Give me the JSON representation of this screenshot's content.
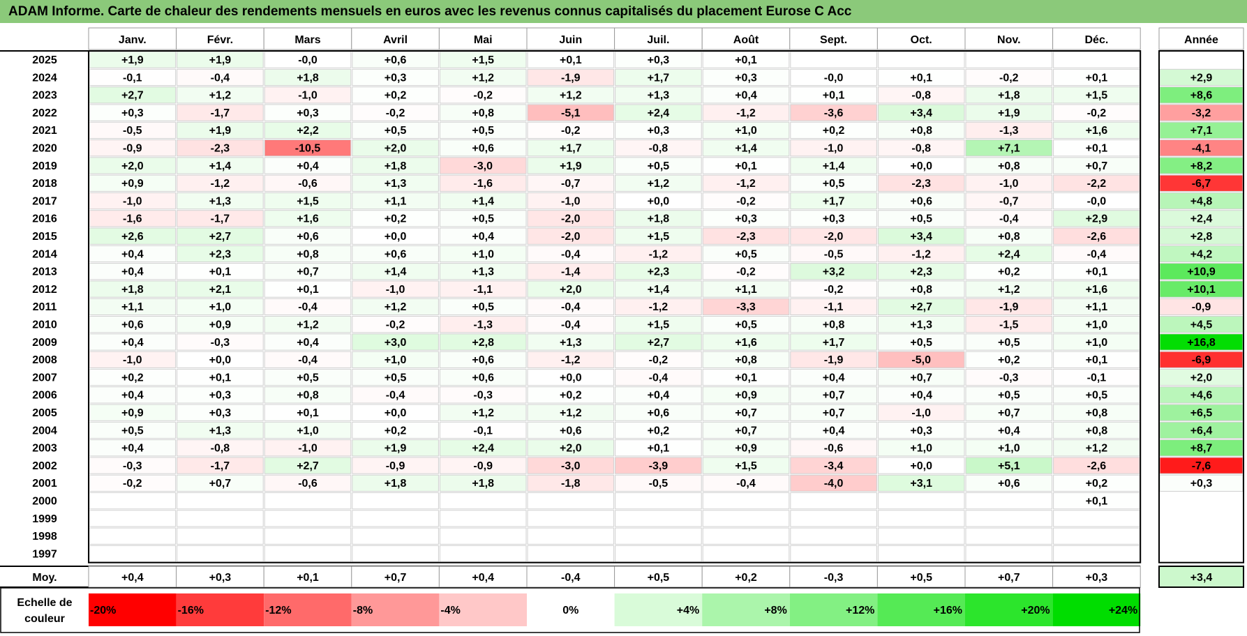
{
  "title": "ADAM Informe. Carte de chaleur des rendements mensuels en euros avec les revenus connus capitalisés du placement Eurose C Acc",
  "chart_data": {
    "type": "heatmap",
    "months": [
      "Janv.",
      "Févr.",
      "Mars",
      "Avril",
      "Mai",
      "Juin",
      "Juil.",
      "Août",
      "Sept.",
      "Oct.",
      "Nov.",
      "Déc."
    ],
    "year_header": "Année",
    "avg_label": "Moy.",
    "rows": [
      {
        "year": "2025",
        "values": [
          "+1,9",
          "+1,9",
          "-0,0",
          "+0,6",
          "+1,5",
          "+0,1",
          "+0,3",
          "+0,1",
          "",
          "",
          "",
          ""
        ],
        "annual": ""
      },
      {
        "year": "2024",
        "values": [
          "-0,1",
          "-0,4",
          "+1,8",
          "+0,3",
          "+1,2",
          "-1,9",
          "+1,7",
          "+0,3",
          "-0,0",
          "+0,1",
          "-0,2",
          "+0,1"
        ],
        "annual": "+2,9"
      },
      {
        "year": "2023",
        "values": [
          "+2,7",
          "+1,2",
          "-1,0",
          "+0,2",
          "-0,2",
          "+1,2",
          "+1,3",
          "+0,4",
          "+0,1",
          "-0,8",
          "+1,8",
          "+1,5"
        ],
        "annual": "+8,6"
      },
      {
        "year": "2022",
        "values": [
          "+0,3",
          "-1,7",
          "+0,3",
          "-0,2",
          "+0,8",
          "-5,1",
          "+2,4",
          "-1,2",
          "-3,6",
          "+3,4",
          "+1,9",
          "-0,2"
        ],
        "annual": "-3,2"
      },
      {
        "year": "2021",
        "values": [
          "-0,5",
          "+1,9",
          "+2,2",
          "+0,5",
          "+0,5",
          "-0,2",
          "+0,3",
          "+1,0",
          "+0,2",
          "+0,8",
          "-1,3",
          "+1,6"
        ],
        "annual": "+7,1"
      },
      {
        "year": "2020",
        "values": [
          "-0,9",
          "-2,3",
          "-10,5",
          "+2,0",
          "+0,6",
          "+1,7",
          "-0,8",
          "+1,4",
          "-1,0",
          "-0,8",
          "+7,1",
          "+0,1"
        ],
        "annual": "-4,1"
      },
      {
        "year": "2019",
        "values": [
          "+2,0",
          "+1,4",
          "+0,4",
          "+1,8",
          "-3,0",
          "+1,9",
          "+0,5",
          "+0,1",
          "+1,4",
          "+0,0",
          "+0,8",
          "+0,7"
        ],
        "annual": "+8,2"
      },
      {
        "year": "2018",
        "values": [
          "+0,9",
          "-1,2",
          "-0,6",
          "+1,3",
          "-1,6",
          "-0,7",
          "+1,2",
          "-1,2",
          "+0,5",
          "-2,3",
          "-1,0",
          "-2,2"
        ],
        "annual": "-6,7"
      },
      {
        "year": "2017",
        "values": [
          "-1,0",
          "+1,3",
          "+1,5",
          "+1,1",
          "+1,4",
          "-1,0",
          "+0,0",
          "-0,2",
          "+1,7",
          "+0,6",
          "-0,7",
          "-0,0"
        ],
        "annual": "+4,8"
      },
      {
        "year": "2016",
        "values": [
          "-1,6",
          "-1,7",
          "+1,6",
          "+0,2",
          "+0,5",
          "-2,0",
          "+1,8",
          "+0,3",
          "+0,3",
          "+0,5",
          "-0,4",
          "+2,9"
        ],
        "annual": "+2,4"
      },
      {
        "year": "2015",
        "values": [
          "+2,6",
          "+2,7",
          "+0,6",
          "+0,0",
          "+0,4",
          "-2,0",
          "+1,5",
          "-2,3",
          "-2,0",
          "+3,4",
          "+0,8",
          "-2,6"
        ],
        "annual": "+2,8"
      },
      {
        "year": "2014",
        "values": [
          "+0,4",
          "+2,3",
          "+0,8",
          "+0,6",
          "+1,0",
          "-0,4",
          "-1,2",
          "+0,5",
          "-0,5",
          "-1,2",
          "+2,4",
          "-0,4"
        ],
        "annual": "+4,2"
      },
      {
        "year": "2013",
        "values": [
          "+0,4",
          "+0,1",
          "+0,7",
          "+1,4",
          "+1,3",
          "-1,4",
          "+2,3",
          "-0,2",
          "+3,2",
          "+2,3",
          "+0,2",
          "+0,1"
        ],
        "annual": "+10,9"
      },
      {
        "year": "2012",
        "values": [
          "+1,8",
          "+2,1",
          "+0,1",
          "-1,0",
          "-1,1",
          "+2,0",
          "+1,4",
          "+1,1",
          "-0,2",
          "+0,8",
          "+1,2",
          "+1,6"
        ],
        "annual": "+10,1"
      },
      {
        "year": "2011",
        "values": [
          "+1,1",
          "+1,0",
          "-0,4",
          "+1,2",
          "+0,5",
          "-0,4",
          "-1,2",
          "-3,3",
          "-1,1",
          "+2,7",
          "-1,9",
          "+1,1"
        ],
        "annual": "-0,9"
      },
      {
        "year": "2010",
        "values": [
          "+0,6",
          "+0,9",
          "+1,2",
          "-0,2",
          "-1,3",
          "-0,4",
          "+1,5",
          "+0,5",
          "+0,8",
          "+1,3",
          "-1,5",
          "+1,0"
        ],
        "annual": "+4,5"
      },
      {
        "year": "2009",
        "values": [
          "+0,4",
          "-0,3",
          "+0,4",
          "+3,0",
          "+2,8",
          "+1,3",
          "+2,7",
          "+1,6",
          "+1,7",
          "+0,5",
          "+0,5",
          "+1,0"
        ],
        "annual": "+16,8"
      },
      {
        "year": "2008",
        "values": [
          "-1,0",
          "+0,0",
          "-0,4",
          "+1,0",
          "+0,6",
          "-1,2",
          "-0,2",
          "+0,8",
          "-1,9",
          "-5,0",
          "+0,2",
          "+0,1"
        ],
        "annual": "-6,9"
      },
      {
        "year": "2007",
        "values": [
          "+0,2",
          "+0,1",
          "+0,5",
          "+0,5",
          "+0,6",
          "+0,0",
          "-0,4",
          "+0,1",
          "+0,4",
          "+0,7",
          "-0,3",
          "-0,1"
        ],
        "annual": "+2,0"
      },
      {
        "year": "2006",
        "values": [
          "+0,4",
          "+0,3",
          "+0,8",
          "-0,4",
          "-0,3",
          "+0,2",
          "+0,4",
          "+0,9",
          "+0,7",
          "+0,4",
          "+0,5",
          "+0,5"
        ],
        "annual": "+4,6"
      },
      {
        "year": "2005",
        "values": [
          "+0,9",
          "+0,3",
          "+0,1",
          "+0,0",
          "+1,2",
          "+1,2",
          "+0,6",
          "+0,7",
          "+0,7",
          "-1,0",
          "+0,7",
          "+0,8"
        ],
        "annual": "+6,5"
      },
      {
        "year": "2004",
        "values": [
          "+0,5",
          "+1,3",
          "+1,0",
          "+0,2",
          "-0,1",
          "+0,6",
          "+0,2",
          "+0,7",
          "+0,4",
          "+0,3",
          "+0,4",
          "+0,8"
        ],
        "annual": "+6,4"
      },
      {
        "year": "2003",
        "values": [
          "+0,4",
          "-0,8",
          "-1,0",
          "+1,9",
          "+2,4",
          "+2,0",
          "+0,1",
          "+0,9",
          "-0,6",
          "+1,0",
          "+1,0",
          "+1,2"
        ],
        "annual": "+8,7"
      },
      {
        "year": "2002",
        "values": [
          "-0,3",
          "-1,7",
          "+2,7",
          "-0,9",
          "-0,9",
          "-3,0",
          "-3,9",
          "+1,5",
          "-3,4",
          "+0,0",
          "+5,1",
          "-2,6"
        ],
        "annual": "-7,6"
      },
      {
        "year": "2001",
        "values": [
          "-0,2",
          "+0,7",
          "-0,6",
          "+1,8",
          "+1,8",
          "-1,8",
          "-0,5",
          "-0,4",
          "-4,0",
          "+3,1",
          "+0,6",
          "+0,2"
        ],
        "annual": "+0,3"
      },
      {
        "year": "2000",
        "values": [
          "",
          "",
          "",
          "",
          "",
          "",
          "",
          "",
          "",
          "",
          "",
          "+0,1"
        ],
        "annual": ""
      },
      {
        "year": "1999",
        "values": [
          "",
          "",
          "",
          "",
          "",
          "",
          "",
          "",
          "",
          "",
          "",
          ""
        ],
        "annual": ""
      },
      {
        "year": "1998",
        "values": [
          "",
          "",
          "",
          "",
          "",
          "",
          "",
          "",
          "",
          "",
          "",
          ""
        ],
        "annual": ""
      },
      {
        "year": "1997",
        "values": [
          "",
          "",
          "",
          "",
          "",
          "",
          "",
          "",
          "",
          "",
          "",
          ""
        ],
        "annual": ""
      }
    ],
    "averages": [
      "+0,4",
      "+0,3",
      "+0,1",
      "+0,7",
      "+0,4",
      "-0,4",
      "+0,5",
      "+0,2",
      "-0,3",
      "+0,5",
      "+0,7",
      "+0,3"
    ],
    "avg_annual": "+3,4",
    "scale_title": [
      "Echelle de",
      "couleur"
    ],
    "scale": [
      {
        "label": "-20%",
        "color": "#ff0000"
      },
      {
        "label": "-16%",
        "color": "#ff3b3b"
      },
      {
        "label": "-12%",
        "color": "#ff6a6a"
      },
      {
        "label": "-8%",
        "color": "#ff9898"
      },
      {
        "label": "-4%",
        "color": "#ffc8c8"
      },
      {
        "label": "0%",
        "color": "#ffffff"
      },
      {
        "label": "+4%",
        "color": "#d9fbd9"
      },
      {
        "label": "+8%",
        "color": "#abf5ab"
      },
      {
        "label": "+12%",
        "color": "#83f083"
      },
      {
        "label": "+16%",
        "color": "#55ea55"
      },
      {
        "label": "+20%",
        "color": "#2ce52c"
      },
      {
        "label": "+24%",
        "color": "#00dd00"
      }
    ]
  }
}
